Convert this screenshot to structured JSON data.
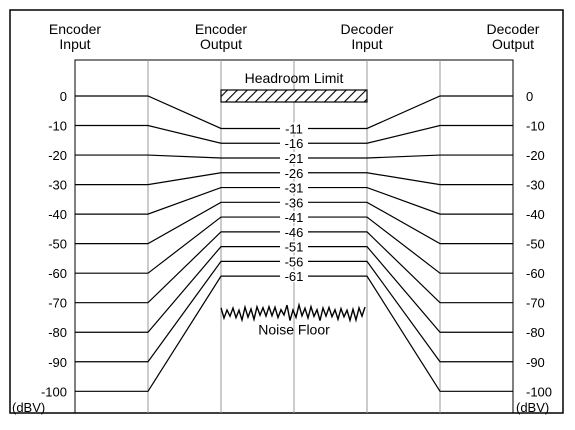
{
  "columns": {
    "encoder_input": [
      "Encoder",
      "Input"
    ],
    "encoder_output": [
      "Encoder",
      "Output"
    ],
    "decoder_input": [
      "Decoder",
      "Input"
    ],
    "decoder_output": [
      "Decoder",
      "Output"
    ]
  },
  "unit_label": "(dBV)",
  "input_levels": [
    0,
    -10,
    -20,
    -30,
    -40,
    -50,
    -60,
    -70,
    -80,
    -90,
    -100
  ],
  "left_axis_labels": [
    "0",
    "-10",
    "-20",
    "-30",
    "-40",
    "-50",
    "-60",
    "-70",
    "-80",
    "-90",
    "-100"
  ],
  "right_axis_labels": [
    "0",
    "-10",
    "-20",
    "-30",
    "-40",
    "-50",
    "-60",
    "-70",
    "-80",
    "-90",
    "-100"
  ],
  "compressed_levels": [
    -11,
    -16,
    -21,
    -26,
    -31,
    -36,
    -41,
    -46,
    -51,
    -56,
    -61
  ],
  "compressed_labels": [
    "-11",
    "-16",
    "-21",
    "-26",
    "-31",
    "-36",
    "-41",
    "-46",
    "-51",
    "-56",
    "-61"
  ],
  "headroom_label": "Headroom Limit",
  "headroom_level": 0,
  "noise_label": "Noise Floor",
  "noise_level": -70
}
